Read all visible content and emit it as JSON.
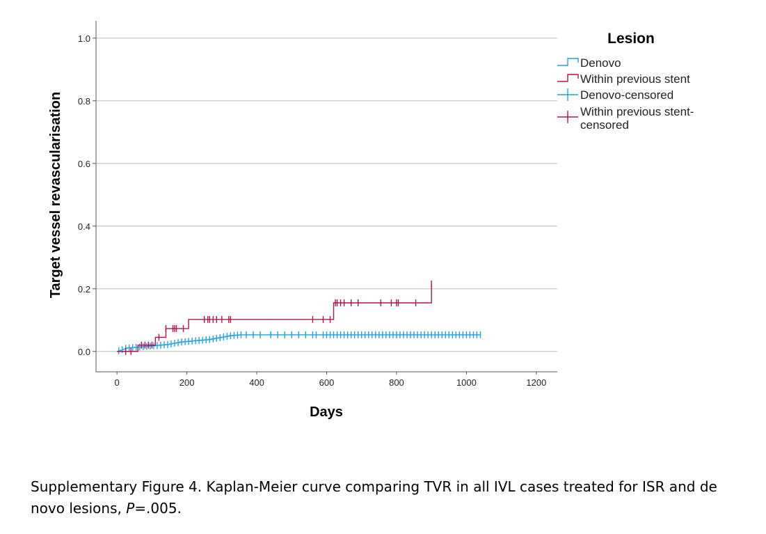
{
  "chart_data": {
    "type": "line",
    "subtype": "kaplan-meier",
    "title": "",
    "xlabel": "Days",
    "ylabel": "Target vessel revascularisation",
    "xlim": [
      -60,
      1260
    ],
    "ylim": [
      -0.065,
      1.055
    ],
    "x_ticks": [
      "0",
      "200",
      "400",
      "600",
      "800",
      "1000",
      "1200"
    ],
    "x_tick_values": [
      0,
      200,
      400,
      600,
      800,
      1000,
      1200
    ],
    "y_ticks": [
      "0.0",
      "0.2",
      "0.4",
      "0.6",
      "0.8",
      "1.0"
    ],
    "y_tick_values": [
      0,
      0.2,
      0.4,
      0.6,
      0.8,
      1.0
    ],
    "grid": "horizontal",
    "legend": {
      "title": "Lesion",
      "position": "right",
      "entries": [
        {
          "label": "Denovo",
          "kind": "step",
          "color": "#1e9fe8"
        },
        {
          "label": "Within previous stent",
          "kind": "step",
          "color": "#b0124e"
        },
        {
          "label": "Denovo-censored",
          "kind": "tick",
          "color": "#1e9fe8"
        },
        {
          "label_lines": [
            "Within previous stent-",
            "censored"
          ],
          "kind": "tick",
          "color": "#b0124e"
        }
      ]
    },
    "series": [
      {
        "name": "Denovo",
        "color": "#1e9fe8",
        "x": [
          0,
          5,
          10,
          15,
          20,
          25,
          30,
          40,
          50,
          60,
          70,
          80,
          90,
          100,
          110,
          120,
          130,
          140,
          150,
          160,
          170,
          180,
          190,
          200,
          210,
          220,
          230,
          240,
          250,
          260,
          270,
          280,
          290,
          300,
          310,
          320,
          330,
          340,
          350,
          1040
        ],
        "y": [
          0,
          0.002,
          0.004,
          0.006,
          0.008,
          0.01,
          0.011,
          0.012,
          0.013,
          0.014,
          0.015,
          0.016,
          0.017,
          0.018,
          0.019,
          0.02,
          0.021,
          0.022,
          0.024,
          0.026,
          0.028,
          0.03,
          0.031,
          0.032,
          0.033,
          0.034,
          0.035,
          0.036,
          0.037,
          0.038,
          0.04,
          0.042,
          0.044,
          0.046,
          0.048,
          0.05,
          0.051,
          0.052,
          0.053,
          0.053
        ],
        "censored_x": [
          5,
          15,
          25,
          35,
          45,
          55,
          65,
          75,
          85,
          95,
          105,
          115,
          125,
          135,
          145,
          155,
          165,
          175,
          185,
          195,
          205,
          215,
          225,
          235,
          245,
          255,
          265,
          275,
          285,
          295,
          305,
          315,
          325,
          335,
          345,
          355,
          370,
          390,
          410,
          440,
          460,
          480,
          500,
          520,
          540,
          560,
          570,
          590,
          600,
          610,
          620,
          630,
          640,
          650,
          660,
          670,
          680,
          690,
          700,
          710,
          720,
          730,
          740,
          750,
          760,
          770,
          780,
          790,
          800,
          810,
          820,
          830,
          840,
          850,
          860,
          870,
          880,
          890,
          900,
          910,
          920,
          930,
          940,
          950,
          960,
          970,
          980,
          990,
          1000,
          1010,
          1020,
          1030,
          1040
        ]
      },
      {
        "name": "Within previous stent",
        "color": "#b0124e",
        "x": [
          0,
          50,
          60,
          100,
          110,
          135,
          140,
          200,
          205,
          430,
          620,
          900
        ],
        "y": [
          0,
          0,
          0.02,
          0.02,
          0.045,
          0.045,
          0.073,
          0.073,
          0.102,
          0.102,
          0.155,
          0.215
        ],
        "censored_x": [
          25,
          40,
          70,
          80,
          90,
          100,
          120,
          140,
          160,
          165,
          170,
          190,
          250,
          260,
          265,
          275,
          285,
          300,
          320,
          325,
          560,
          590,
          610,
          625,
          630,
          640,
          650,
          670,
          690,
          755,
          785,
          800,
          805,
          855,
          900
        ]
      }
    ]
  },
  "caption": {
    "text_before": "Supplementary Figure 4. Kaplan-Meier curve comparing TVR in all IVL cases treated for ISR and de novo lesions, ",
    "p_letter": "P",
    "text_after": "=.005."
  }
}
